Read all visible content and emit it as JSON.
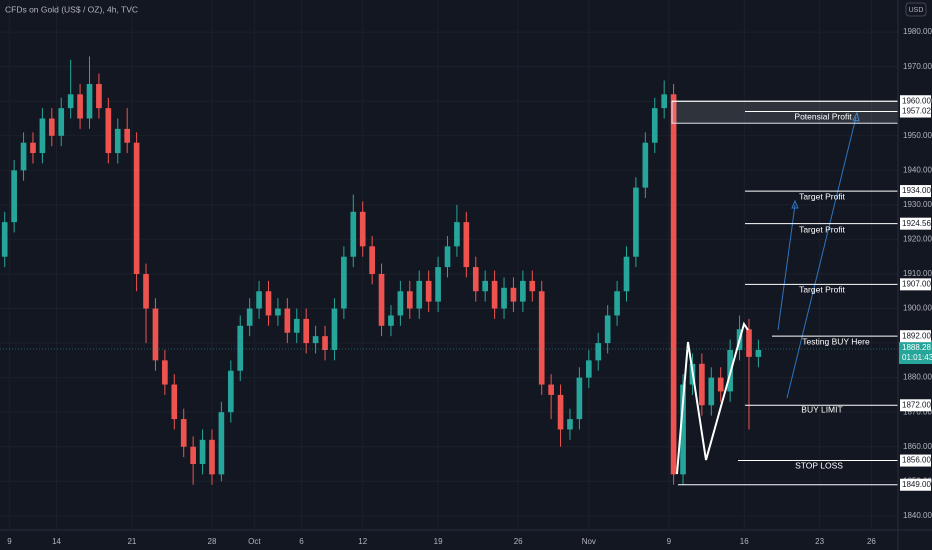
{
  "chart_data": {
    "type": "candlestick",
    "title": "CFDs on Gold (US$ / OZ), 4h, TVC",
    "currency": "USD",
    "up_color": "#26a69a",
    "down_color": "#ef5350",
    "xlim": [
      -0.5,
      94.5
    ],
    "xticks": [
      {
        "value": 0.5,
        "label": "9"
      },
      {
        "value": 5.5,
        "label": "14"
      },
      {
        "value": 13.5,
        "label": "21"
      },
      {
        "value": 22,
        "label": "28"
      },
      {
        "value": 26.5,
        "label": "Oct"
      },
      {
        "value": 31.5,
        "label": "6"
      },
      {
        "value": 38,
        "label": "12"
      },
      {
        "value": 46,
        "label": "19"
      },
      {
        "value": 54.5,
        "label": "26"
      },
      {
        "value": 62,
        "label": "Nov"
      },
      {
        "value": 70.5,
        "label": "9"
      },
      {
        "value": 78.5,
        "label": "16"
      },
      {
        "value": 86.5,
        "label": "23"
      },
      {
        "value": 92,
        "label": "26"
      }
    ],
    "ylim": [
      1835.9,
      1989.3
    ],
    "yticks": [
      {
        "value": 1840,
        "label": "1840.00"
      },
      {
        "value": 1850,
        "label": "1850.00"
      },
      {
        "value": 1860,
        "label": "1860.00"
      },
      {
        "value": 1870,
        "label": "1870.00"
      },
      {
        "value": 1880,
        "label": "1880.00"
      },
      {
        "value": 1890,
        "label": "1890.00"
      },
      {
        "value": 1900,
        "label": "1900.00"
      },
      {
        "value": 1910,
        "label": "1910.00"
      },
      {
        "value": 1920,
        "label": "1920.00"
      },
      {
        "value": 1930,
        "label": "1930.00"
      },
      {
        "value": 1940,
        "label": "1940.00"
      },
      {
        "value": 1950,
        "label": "1950.00"
      },
      {
        "value": 1960,
        "label": "1960.00"
      },
      {
        "value": 1970,
        "label": "1970.00"
      },
      {
        "value": 1980,
        "label": "1980.00"
      }
    ],
    "grid": true,
    "open": [
      1915,
      1925,
      1940,
      1948,
      1945,
      1955,
      1950,
      1958,
      1962,
      1955,
      1965,
      1958,
      1945,
      1952,
      1948,
      1910,
      1900,
      1885,
      1878,
      1868,
      1860,
      1855,
      1862,
      1852,
      1870,
      1882,
      1895,
      1900,
      1905,
      1898,
      1900,
      1893,
      1897,
      1890,
      1892,
      1888,
      1900,
      1915,
      1928,
      1918,
      1910,
      1895,
      1898,
      1905,
      1900,
      1908,
      1902,
      1912,
      1918,
      1925,
      1912,
      1905,
      1908,
      1900,
      1906,
      1902,
      1908,
      1905,
      1878,
      1875,
      1865,
      1868,
      1880,
      1885,
      1890,
      1898,
      1905,
      1915,
      1935,
      1948,
      1958,
      1962,
      1852,
      1878,
      1884,
      1872,
      1880,
      1876,
      1888,
      1894,
      1886
    ],
    "high": [
      1928,
      1943,
      1951,
      1951,
      1958,
      1958,
      1961,
      1972,
      1965,
      1973,
      1968,
      1961,
      1955,
      1958,
      1951,
      1913,
      1903,
      1888,
      1881,
      1871,
      1863,
      1865,
      1865,
      1873,
      1885,
      1898,
      1903,
      1908,
      1908,
      1903,
      1903,
      1900,
      1900,
      1895,
      1895,
      1903,
      1918,
      1933,
      1931,
      1921,
      1913,
      1901,
      1908,
      1908,
      1911,
      1911,
      1915,
      1921,
      1930,
      1928,
      1915,
      1911,
      1911,
      1909,
      1909,
      1911,
      1911,
      1908,
      1881,
      1878,
      1871,
      1883,
      1888,
      1893,
      1901,
      1908,
      1918,
      1938,
      1951,
      1961,
      1966,
      1965,
      1881,
      1887,
      1887,
      1883,
      1883,
      1891,
      1898,
      1897,
      1891
    ],
    "low": [
      1912,
      1922,
      1937,
      1942,
      1942,
      1947,
      1947,
      1955,
      1952,
      1952,
      1955,
      1942,
      1942,
      1945,
      1905,
      1890,
      1882,
      1875,
      1865,
      1857,
      1849,
      1852,
      1849,
      1850,
      1867,
      1879,
      1892,
      1897,
      1895,
      1895,
      1890,
      1890,
      1887,
      1887,
      1885,
      1885,
      1897,
      1912,
      1915,
      1907,
      1892,
      1892,
      1895,
      1897,
      1897,
      1899,
      1899,
      1909,
      1915,
      1909,
      1902,
      1902,
      1897,
      1897,
      1899,
      1899,
      1902,
      1875,
      1868,
      1860,
      1862,
      1865,
      1877,
      1882,
      1887,
      1895,
      1902,
      1912,
      1932,
      1945,
      1955,
      1849,
      1849,
      1875,
      1869,
      1869,
      1873,
      1873,
      1885,
      1865,
      1883
    ],
    "close": [
      1925,
      1940,
      1948,
      1945,
      1955,
      1950,
      1958,
      1962,
      1955,
      1965,
      1958,
      1945,
      1952,
      1948,
      1910,
      1900,
      1885,
      1878,
      1868,
      1860,
      1855,
      1862,
      1852,
      1870,
      1882,
      1895,
      1900,
      1905,
      1898,
      1900,
      1893,
      1897,
      1890,
      1892,
      1888,
      1900,
      1915,
      1928,
      1918,
      1910,
      1895,
      1898,
      1905,
      1900,
      1908,
      1902,
      1912,
      1918,
      1925,
      1912,
      1905,
      1908,
      1900,
      1906,
      1902,
      1908,
      1905,
      1878,
      1875,
      1865,
      1868,
      1880,
      1885,
      1890,
      1898,
      1905,
      1915,
      1935,
      1948,
      1958,
      1962,
      1852,
      1878,
      1884,
      1872,
      1880,
      1876,
      1888,
      1894,
      1886,
      1888
    ],
    "current_price": {
      "value": 1888.28,
      "label": "1888.28",
      "countdown": "01:01:43"
    },
    "levels": [
      {
        "value": 1960,
        "label": "1960.00"
      },
      {
        "value": 1957.02,
        "label": "1957.02"
      },
      {
        "value": 1934,
        "label": "1934.00"
      },
      {
        "value": 1924.56,
        "label": "1924.56"
      },
      {
        "value": 1907,
        "label": "1907.00"
      },
      {
        "value": 1892,
        "label": "1892.00"
      },
      {
        "value": 1872,
        "label": "1872.00"
      },
      {
        "value": 1856,
        "label": "1856.00"
      },
      {
        "value": 1849,
        "label": "1849.00"
      }
    ],
    "annotations": [
      "Potensial Profit",
      "Target Profit",
      "Target Profit",
      "Target Profit",
      "Testing BUY Here",
      "BUY LIMIT",
      "STOP LOSS"
    ]
  }
}
